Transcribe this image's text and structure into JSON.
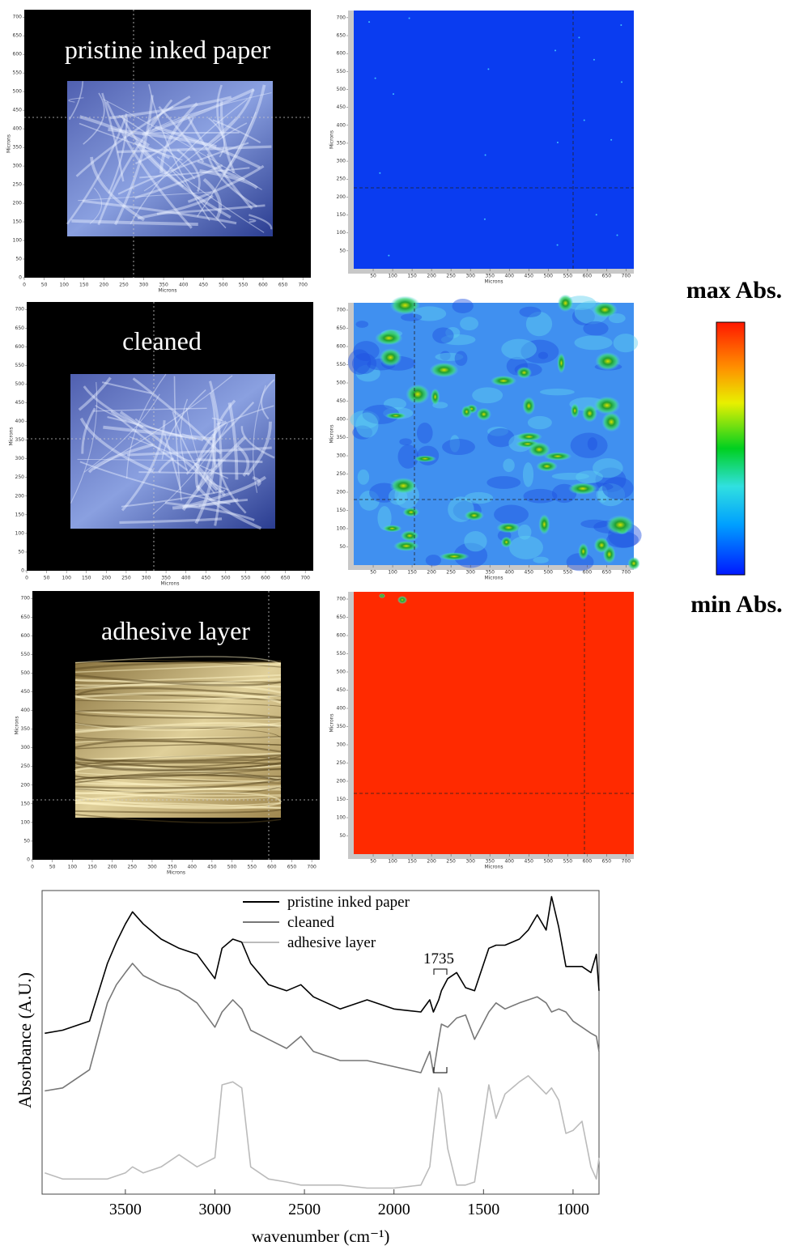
{
  "panels": [
    {
      "label": "pristine inked paper"
    },
    {
      "label": "cleaned"
    },
    {
      "label": "adhesive layer"
    }
  ],
  "axis_label": "Microns",
  "micron_lim": [
    0,
    720
  ],
  "micron_ticks": [
    0,
    50,
    100,
    150,
    200,
    250,
    300,
    350,
    400,
    450,
    500,
    550,
    600,
    650,
    700
  ],
  "map_ticks": [
    50,
    100,
    150,
    200,
    250,
    300,
    350,
    400,
    450,
    500,
    550,
    600,
    650,
    700
  ],
  "colorbar": {
    "max_label": "max Abs.",
    "min_label": "min Abs."
  },
  "chart_data": {
    "type": "line",
    "ylabel": "Absorbance (A.U.)",
    "xlabel": "wavenumber (cm⁻¹)",
    "annotation": "1735",
    "xlim": [
      3965,
      855
    ],
    "ylim": [
      0,
      100
    ],
    "xticks": [
      3500,
      3000,
      2500,
      2000,
      1500,
      1000
    ],
    "x": [
      3950,
      3850,
      3700,
      3600,
      3550,
      3500,
      3460,
      3400,
      3300,
      3200,
      3100,
      3000,
      2960,
      2900,
      2850,
      2800,
      2700,
      2600,
      2520,
      2450,
      2300,
      2150,
      2000,
      1850,
      1800,
      1780,
      1750,
      1735,
      1700,
      1650,
      1600,
      1550,
      1470,
      1430,
      1380,
      1300,
      1250,
      1200,
      1150,
      1120,
      1080,
      1040,
      1000,
      950,
      900,
      870,
      855
    ],
    "series": [
      {
        "name": "pristine inked paper",
        "color": "#000000",
        "values": [
          53,
          54,
          57,
          76,
          83,
          89,
          93,
          89,
          84,
          81,
          79,
          71,
          81,
          84,
          83,
          76,
          69,
          67,
          69,
          65,
          61,
          64,
          61,
          60,
          64,
          60,
          64,
          67,
          71,
          73,
          68,
          67,
          81,
          82,
          82,
          84,
          87,
          92,
          87,
          98,
          88,
          75,
          75,
          75,
          73,
          79,
          67
        ]
      },
      {
        "name": "cleaned",
        "color": "#777777",
        "values": [
          34,
          35,
          41,
          63,
          69,
          73,
          76,
          72,
          69,
          67,
          63,
          55,
          60,
          64,
          61,
          54,
          51,
          48,
          52,
          47,
          44,
          44,
          42,
          40,
          47,
          40,
          51,
          56,
          55,
          58,
          59,
          51,
          60,
          63,
          61,
          63,
          64,
          65,
          63,
          60,
          61,
          60,
          57,
          55,
          53,
          52,
          47
        ]
      },
      {
        "name": "adhesive layer",
        "color": "#bbbbbb",
        "values": [
          7,
          5,
          5,
          5,
          6,
          7,
          9,
          7,
          9,
          13,
          9,
          12,
          36,
          37,
          35,
          9,
          5,
          4,
          3,
          3,
          3,
          2,
          2,
          3,
          9,
          20,
          35,
          33,
          15,
          3,
          3,
          4,
          36,
          25,
          33,
          37,
          39,
          36,
          33,
          35,
          31,
          20,
          21,
          24,
          9,
          5,
          12
        ]
      }
    ]
  }
}
